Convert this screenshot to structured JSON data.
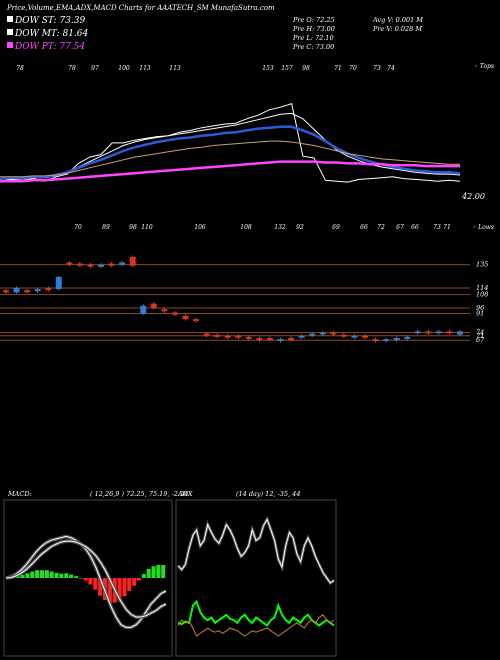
{
  "header": {
    "title": "Price,Volume,EMA,ADX,MACD Charts for AAATECH_SM MunafaSutra.com"
  },
  "legend": [
    {
      "label": "DOW ST: 73.39",
      "color": "#ffffff"
    },
    {
      "label": "DOW MT: 81.64",
      "color": "#ffffff"
    },
    {
      "label": "DOW PT: 77.54",
      "color": "#ff44ff"
    }
  ],
  "stats": {
    "col1": [
      "Pre O: 72.25",
      "Pre H: 73.00",
      "Pre L: 72.10",
      "Pre C: 73.00"
    ],
    "col2": [
      "Avg V: 0.001 M",
      "Pre V: 0.028 M"
    ]
  },
  "chart_data": [
    {
      "type": "line",
      "name": "price-ema-panel",
      "top_labels": [
        "78",
        "78",
        "97",
        "100",
        "113",
        "113",
        "153",
        "157",
        "98",
        "71",
        "70",
        "73",
        "74"
      ],
      "bottom_labels": [
        "70",
        "89",
        "98",
        "110",
        "106",
        "108",
        "132",
        "92",
        "69",
        "66",
        "72",
        "67",
        "66",
        "73",
        "71"
      ],
      "right_top_label": "◦ Tops",
      "right_bottom_label": "◦ Lows",
      "price_label": "42.00",
      "series": [
        {
          "name": "",
          "color": "#ffffff",
          "values": [
            70,
            72,
            71,
            73,
            70,
            75,
            78,
            90,
            97,
            100,
            113,
            113,
            116,
            118,
            120,
            121,
            125,
            127,
            130,
            132,
            134,
            135,
            140,
            144,
            150,
            153,
            157,
            98,
            96,
            71,
            70,
            69,
            72,
            73,
            74,
            75,
            73,
            72,
            71,
            70,
            71,
            70
          ]
        },
        {
          "name": "",
          "color": "#ffffff",
          "values": [
            72,
            73,
            73,
            74,
            74,
            76,
            80,
            86,
            92,
            98,
            104,
            110,
            114,
            117,
            119,
            121,
            123,
            125,
            127,
            129,
            131,
            133,
            136,
            139,
            142,
            145,
            146,
            140,
            128,
            116,
            105,
            98,
            93,
            89,
            86,
            84,
            82,
            80,
            79,
            78,
            78,
            77
          ]
        },
        {
          "name": "",
          "color": "#2a5bd7",
          "values": [
            73,
            74,
            74,
            75,
            75,
            77,
            80,
            85,
            90,
            94,
            99,
            104,
            108,
            111,
            114,
            116,
            118,
            119,
            121,
            122,
            124,
            125,
            127,
            129,
            130,
            131,
            131,
            127,
            122,
            115,
            107,
            101,
            96,
            92,
            89,
            86,
            84,
            82,
            81,
            80,
            80,
            79
          ]
        },
        {
          "name": "",
          "color": "#c8a070",
          "values": [
            75,
            75,
            75,
            76,
            76,
            77,
            79,
            82,
            85,
            88,
            91,
            94,
            97,
            99,
            101,
            103,
            105,
            107,
            108,
            110,
            111,
            112,
            113,
            114,
            115,
            115,
            114,
            112,
            110,
            107,
            104,
            101,
            99,
            97,
            95,
            94,
            93,
            92,
            91,
            90,
            89,
            89
          ]
        },
        {
          "name": "",
          "color": "#ff44ff",
          "values": [
            70,
            70,
            70,
            71,
            71,
            72,
            73,
            74,
            75,
            76,
            77,
            78,
            79,
            80,
            81,
            82,
            83,
            84,
            85,
            86,
            87,
            88,
            89,
            90,
            91,
            92,
            92,
            92,
            92,
            91,
            91,
            90,
            90,
            89,
            89,
            88,
            88,
            88,
            87,
            87,
            87,
            87
          ]
        }
      ]
    },
    {
      "type": "bar",
      "name": "candles-panel",
      "levels": [
        "135",
        "114",
        "108",
        "96",
        "91",
        "74",
        "71",
        "67"
      ],
      "candles": [
        {
          "up": false,
          "o": 112,
          "c": 110
        },
        {
          "up": true,
          "o": 110,
          "c": 114
        },
        {
          "up": false,
          "o": 112,
          "c": 111
        },
        {
          "up": true,
          "o": 111,
          "c": 113
        },
        {
          "up": false,
          "o": 114,
          "c": 112
        },
        {
          "up": true,
          "o": 113,
          "c": 124
        },
        {
          "up": false,
          "o": 137,
          "c": 136
        },
        {
          "up": false,
          "o": 136,
          "c": 134
        },
        {
          "up": false,
          "o": 135,
          "c": 134
        },
        {
          "up": true,
          "o": 133,
          "c": 135
        },
        {
          "up": false,
          "o": 136,
          "c": 134
        },
        {
          "up": true,
          "o": 135,
          "c": 137
        },
        {
          "up": false,
          "o": 142,
          "c": 134
        },
        {
          "up": true,
          "o": 91,
          "c": 98
        },
        {
          "up": false,
          "o": 100,
          "c": 96
        },
        {
          "up": false,
          "o": 95,
          "c": 93
        },
        {
          "up": false,
          "o": 92,
          "c": 90
        },
        {
          "up": false,
          "o": 89,
          "c": 86
        },
        {
          "up": false,
          "o": 86,
          "c": 85
        },
        {
          "up": false,
          "o": 73,
          "c": 71
        },
        {
          "up": false,
          "o": 72,
          "c": 70
        },
        {
          "up": false,
          "o": 71,
          "c": 70
        },
        {
          "up": false,
          "o": 71,
          "c": 70
        },
        {
          "up": false,
          "o": 70,
          "c": 69
        },
        {
          "up": false,
          "o": 69,
          "c": 68
        },
        {
          "up": false,
          "o": 69,
          "c": 67
        },
        {
          "up": true,
          "o": 67,
          "c": 68
        },
        {
          "up": false,
          "o": 69,
          "c": 68
        },
        {
          "up": true,
          "o": 70,
          "c": 71
        },
        {
          "up": true,
          "o": 72,
          "c": 73
        },
        {
          "up": true,
          "o": 73,
          "c": 74
        },
        {
          "up": false,
          "o": 74,
          "c": 73
        },
        {
          "up": false,
          "o": 72,
          "c": 71
        },
        {
          "up": true,
          "o": 70,
          "c": 71
        },
        {
          "up": false,
          "o": 71,
          "c": 70
        },
        {
          "up": false,
          "o": 68,
          "c": 67
        },
        {
          "up": true,
          "o": 67,
          "c": 68
        },
        {
          "up": true,
          "o": 68,
          "c": 69
        },
        {
          "up": true,
          "o": 69,
          "c": 70
        },
        {
          "up": true,
          "o": 74,
          "c": 75
        },
        {
          "up": false,
          "o": 75,
          "c": 74
        },
        {
          "up": true,
          "o": 74,
          "c": 75
        },
        {
          "up": false,
          "o": 75,
          "c": 74
        },
        {
          "up": true,
          "o": 72,
          "c": 75
        }
      ]
    },
    {
      "type": "line",
      "name": "macd-panel",
      "label": "MACD:",
      "params": "( 12,26,9 ) 72.25, 75.19, -2.94",
      "series": [
        {
          "name": "",
          "color": "#ffffff",
          "values": [
            0,
            0.5,
            1.5,
            3,
            5,
            7.5,
            10,
            12,
            13.5,
            14.5,
            15,
            15.5,
            16,
            15.5,
            14.5,
            13,
            11,
            8,
            4,
            -1,
            -6,
            -11,
            -15,
            -18,
            -19,
            -19,
            -18,
            -16,
            -13,
            -10,
            -8,
            -6,
            -5
          ]
        },
        {
          "name": "",
          "color": "#ffffff",
          "values": [
            0,
            0.2,
            0.8,
            1.8,
            3.2,
            5,
            7,
            9,
            10.5,
            12,
            13,
            13.8,
            14.2,
            14.2,
            13.8,
            13,
            12,
            10.5,
            8.5,
            5.8,
            2.5,
            -1.5,
            -5.5,
            -9,
            -12,
            -14,
            -15,
            -15,
            -14.5,
            -13.5,
            -12.5,
            -11,
            -10
          ]
        }
      ],
      "histogram": [
        0,
        0.3,
        0.7,
        1.2,
        1.8,
        2.5,
        3,
        3,
        3,
        2.5,
        2,
        1.7,
        1.8,
        1.3,
        0.7,
        0,
        -1,
        -2.5,
        -4.5,
        -6.8,
        -8.5,
        -9.5,
        -9.5,
        -9,
        -7,
        -5,
        -3,
        -1,
        1.5,
        3.5,
        4.5,
        5,
        5
      ]
    },
    {
      "type": "line",
      "name": "adx-panel",
      "label": "ADX",
      "params": "(14 day) 12, -35, 44",
      "series": [
        {
          "name": "",
          "color": "#ffffff",
          "values": [
            65,
            62,
            66,
            78,
            88,
            92,
            80,
            84,
            96,
            90,
            85,
            82,
            88,
            96,
            92,
            86,
            78,
            72,
            75,
            80,
            92,
            84,
            86,
            95,
            100,
            92,
            84,
            70,
            64,
            80,
            90,
            86,
            74,
            68,
            80,
            86,
            80,
            72,
            66,
            60,
            56,
            52,
            54
          ]
        },
        {
          "name": "",
          "color": "#00ff00",
          "values": [
            22,
            21,
            23,
            22,
            35,
            38,
            30,
            26,
            24,
            26,
            22,
            24,
            26,
            28,
            25,
            24,
            22,
            26,
            28,
            24,
            22,
            26,
            24,
            22,
            20,
            24,
            26,
            35,
            28,
            24,
            22,
            26,
            24,
            22,
            26,
            28,
            24,
            22,
            20,
            22,
            24,
            22,
            20
          ]
        },
        {
          "name": "",
          "color": "#d08020",
          "values": [
            20,
            24,
            22,
            23,
            18,
            12,
            14,
            16,
            18,
            16,
            15,
            16,
            14,
            16,
            18,
            17,
            16,
            14,
            12,
            14,
            16,
            15,
            16,
            17,
            18,
            16,
            14,
            12,
            14,
            16,
            18,
            20,
            22,
            20,
            18,
            22,
            24,
            22,
            26,
            28,
            24,
            22,
            24
          ]
        }
      ]
    }
  ]
}
